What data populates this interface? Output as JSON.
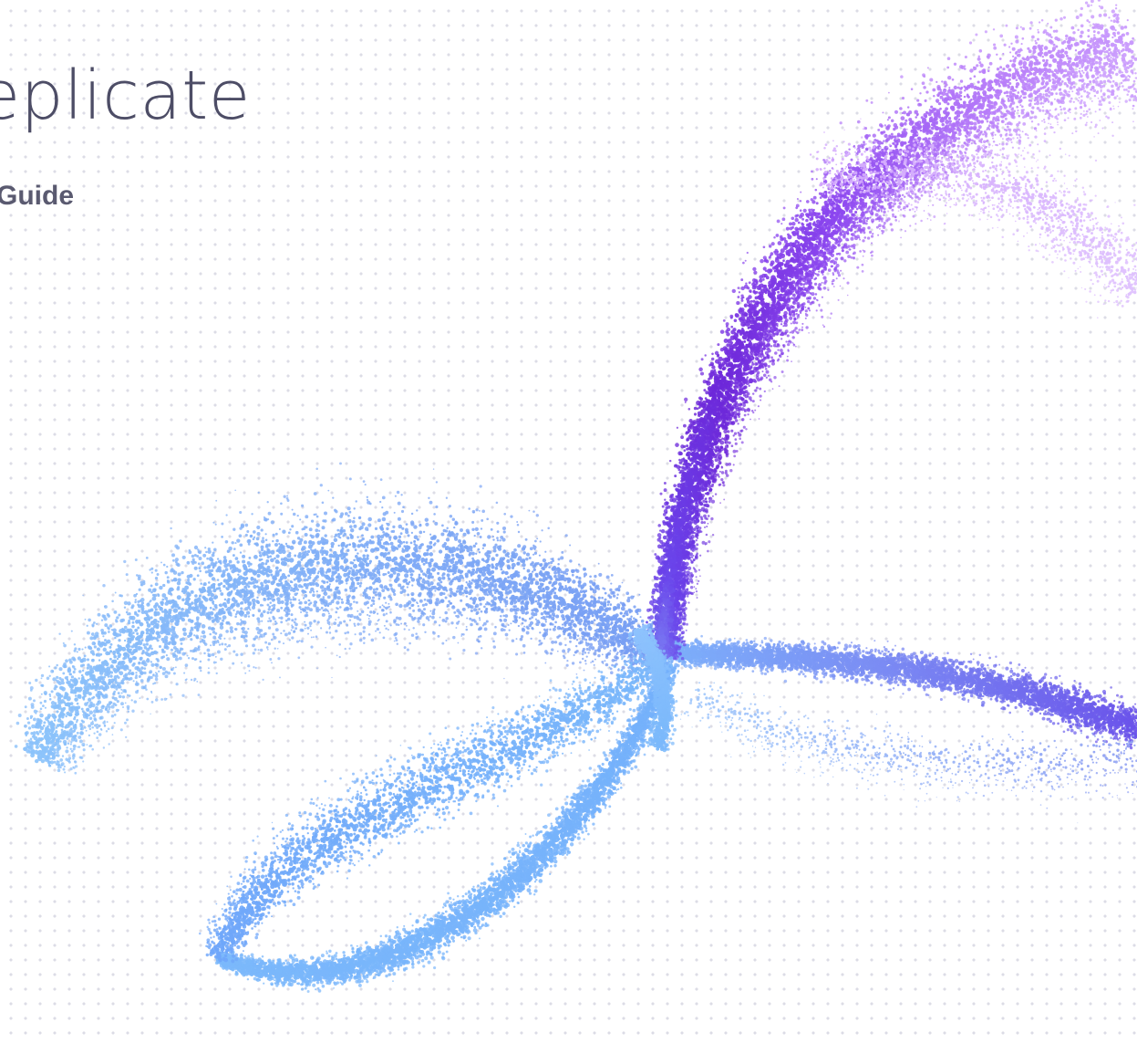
{
  "cover": {
    "title": "Replicate",
    "subtitle": "Guide"
  },
  "palette": {
    "background": "#ffffff",
    "dot_grid": "#dcdce6",
    "title_text": "#4d4d66",
    "particle_colors": [
      "#7ab8fb",
      "#6fa6fa",
      "#7b8cf3",
      "#6a44ea",
      "#6d28d9",
      "#8b46ef",
      "#c084fc",
      "#d8b4fe"
    ]
  },
  "illustration": "particle-wave"
}
